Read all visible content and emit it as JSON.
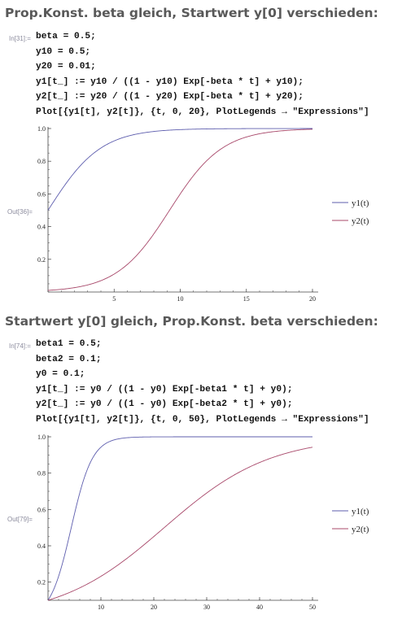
{
  "section1": {
    "title": "Prop.Konst. beta gleich, Startwert y[0] verschieden:",
    "in_label": "In[31]:=",
    "out_label": "Out[36]=",
    "code": [
      "beta = 0.5;",
      "y10 = 0.5;",
      "y20 = 0.01;",
      "y1[t_] := y10 / ((1 - y10) Exp[-beta * t] + y10);",
      "y2[t_] := y20 / ((1 - y20) Exp[-beta * t] + y20);",
      "Plot[{y1[t], y2[t]}, {t, 0, 20}, PlotLegends → \"Expressions\"]"
    ]
  },
  "section2": {
    "title": "Startwert y[0] gleich, Prop.Konst. beta verschieden:",
    "in_label": "In[74]:=",
    "out_label": "Out[79]=",
    "code": [
      "beta1 = 0.5;",
      "beta2 = 0.1;",
      "y0 = 0.1;",
      "y1[t_] := y0 / ((1 - y0) Exp[-beta1 * t] + y0);",
      "y2[t_] := y0 / ((1 - y0) Exp[-beta2 * t] + y0);",
      "Plot[{y1[t], y2[t]}, {t, 0, 50}, PlotLegends → \"Expressions\"]"
    ]
  },
  "colors": {
    "y1": "#5e5eae",
    "y2": "#a8486a",
    "axis": "#444444"
  },
  "chart_data": [
    {
      "type": "line",
      "x_range": [
        0,
        20
      ],
      "ylim": [
        0,
        1.0
      ],
      "x_ticks": [
        5,
        10,
        15,
        20
      ],
      "y_ticks": [
        0.2,
        0.4,
        0.6,
        0.8,
        1.0
      ],
      "x_tick_labels": [
        "5",
        "10",
        "15",
        "20"
      ],
      "y_tick_labels": [
        "0.2",
        "0.4",
        "0.6",
        "0.8",
        "1.0"
      ],
      "legend_position": "right",
      "series": [
        {
          "name": "y1(t)",
          "y0": 0.5,
          "beta": 0.5,
          "sample": {
            "x": [
              0,
              5,
              10,
              15,
              20
            ],
            "y": [
              0.5,
              0.924,
              0.993,
              0.999,
              1.0
            ]
          }
        },
        {
          "name": "y2(t)",
          "y0": 0.01,
          "beta": 0.5,
          "sample": {
            "x": [
              0,
              5,
              10,
              15,
              20
            ],
            "y": [
              0.01,
              0.109,
              0.6,
              0.947,
              0.995
            ]
          }
        }
      ]
    },
    {
      "type": "line",
      "x_range": [
        0,
        50
      ],
      "ylim": [
        0.1,
        1.0
      ],
      "x_ticks": [
        10,
        20,
        30,
        40,
        50
      ],
      "y_ticks": [
        0.2,
        0.4,
        0.6,
        0.8,
        1.0
      ],
      "x_tick_labels": [
        "10",
        "20",
        "30",
        "40",
        "50"
      ],
      "y_tick_labels": [
        "0.2",
        "0.4",
        "0.6",
        "0.8",
        "1.0"
      ],
      "legend_position": "right",
      "series": [
        {
          "name": "y1(t)",
          "y0": 0.1,
          "beta": 0.5,
          "sample": {
            "x": [
              0,
              5,
              10,
              20,
              50
            ],
            "y": [
              0.1,
              0.575,
              0.943,
              1.0,
              1.0
            ]
          }
        },
        {
          "name": "y2(t)",
          "y0": 0.1,
          "beta": 0.1,
          "sample": {
            "x": [
              0,
              10,
              20,
              30,
              40,
              50
            ],
            "y": [
              0.1,
              0.232,
              0.451,
              0.691,
              0.858,
              0.943
            ]
          }
        }
      ]
    }
  ]
}
